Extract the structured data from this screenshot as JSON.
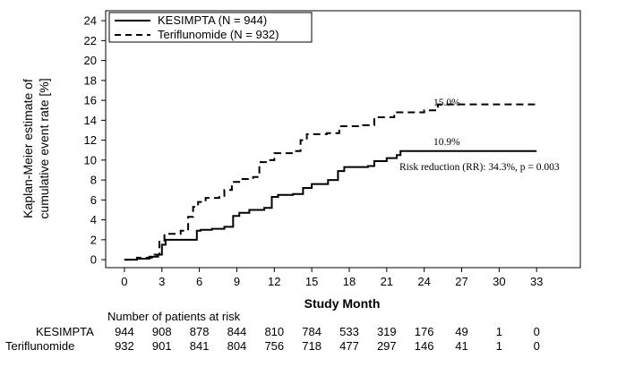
{
  "chart_data": {
    "type": "line",
    "title": "",
    "xlabel": "Study Month",
    "ylabel_lines": [
      "Kaplan-Meier estimate of",
      "cumulative event rate [%]"
    ],
    "xlim": [
      -1.5,
      36.5
    ],
    "ylim": [
      -0.8,
      25
    ],
    "x_ticks": [
      0,
      3,
      6,
      9,
      12,
      15,
      18,
      21,
      24,
      27,
      30,
      33
    ],
    "y_ticks": [
      0,
      2,
      4,
      6,
      8,
      10,
      12,
      14,
      16,
      18,
      20,
      22,
      24
    ],
    "legend_position": "top-left",
    "series": [
      {
        "name": "KESIMPTA (N = 944)",
        "style": "solid",
        "color": "#000000",
        "points": [
          [
            0,
            0
          ],
          [
            1,
            0.1
          ],
          [
            2,
            0.3
          ],
          [
            2.7,
            0.5
          ],
          [
            3,
            1.5
          ],
          [
            3.3,
            2.0
          ],
          [
            5.5,
            2.0
          ],
          [
            5.8,
            2.9
          ],
          [
            6.1,
            3.0
          ],
          [
            7.0,
            3.1
          ],
          [
            8.0,
            3.3
          ],
          [
            8.7,
            4.4
          ],
          [
            9.2,
            4.7
          ],
          [
            10,
            5.0
          ],
          [
            11.2,
            5.2
          ],
          [
            11.8,
            6.3
          ],
          [
            12.3,
            6.5
          ],
          [
            13.5,
            6.6
          ],
          [
            14.3,
            7.2
          ],
          [
            15.0,
            7.6
          ],
          [
            16.3,
            8.0
          ],
          [
            17.1,
            8.9
          ],
          [
            17.6,
            9.3
          ],
          [
            19.5,
            9.4
          ],
          [
            20.0,
            9.9
          ],
          [
            21.0,
            10.2
          ],
          [
            21.8,
            10.5
          ],
          [
            22.1,
            10.9
          ],
          [
            33,
            10.9
          ]
        ]
      },
      {
        "name": "Teriflunomide (N = 932)",
        "style": "dashed",
        "color": "#000000",
        "points": [
          [
            0,
            0
          ],
          [
            1,
            0.2
          ],
          [
            2.4,
            0.5
          ],
          [
            2.8,
            1.8
          ],
          [
            3.2,
            2.6
          ],
          [
            4.5,
            2.9
          ],
          [
            5.1,
            4.3
          ],
          [
            5.5,
            5.3
          ],
          [
            5.9,
            5.8
          ],
          [
            6.5,
            6.2
          ],
          [
            7.6,
            6.4
          ],
          [
            8.0,
            7.0
          ],
          [
            8.6,
            7.8
          ],
          [
            9.3,
            8.1
          ],
          [
            10.3,
            8.3
          ],
          [
            10.8,
            9.8
          ],
          [
            11.4,
            10.0
          ],
          [
            12.0,
            10.7
          ],
          [
            13.5,
            10.9
          ],
          [
            14.1,
            12.0
          ],
          [
            14.6,
            12.6
          ],
          [
            16.2,
            12.7
          ],
          [
            17.2,
            13.4
          ],
          [
            19.1,
            13.5
          ],
          [
            20.0,
            14.3
          ],
          [
            21.6,
            14.8
          ],
          [
            24.0,
            15.0
          ],
          [
            25.1,
            15.6
          ],
          [
            33,
            15.6
          ]
        ]
      }
    ],
    "annotations": {
      "teriflunomide_end_label": "15.0%",
      "kesimpta_end_label": "10.9%",
      "risk_reduction": "Risk reduction (RR): 34.3%, p = 0.003"
    },
    "risk_table": {
      "header": "Number of patients at risk",
      "rows": [
        {
          "name": "KESIMPTA",
          "values": [
            "944",
            "908",
            "878",
            "844",
            "810",
            "784",
            "533",
            "319",
            "176",
            "49",
            "1",
            "0"
          ]
        },
        {
          "name": "Teriflunomide",
          "values": [
            "932",
            "901",
            "841",
            "804",
            "756",
            "718",
            "477",
            "297",
            "146",
            "41",
            "1",
            "0"
          ]
        }
      ]
    }
  }
}
